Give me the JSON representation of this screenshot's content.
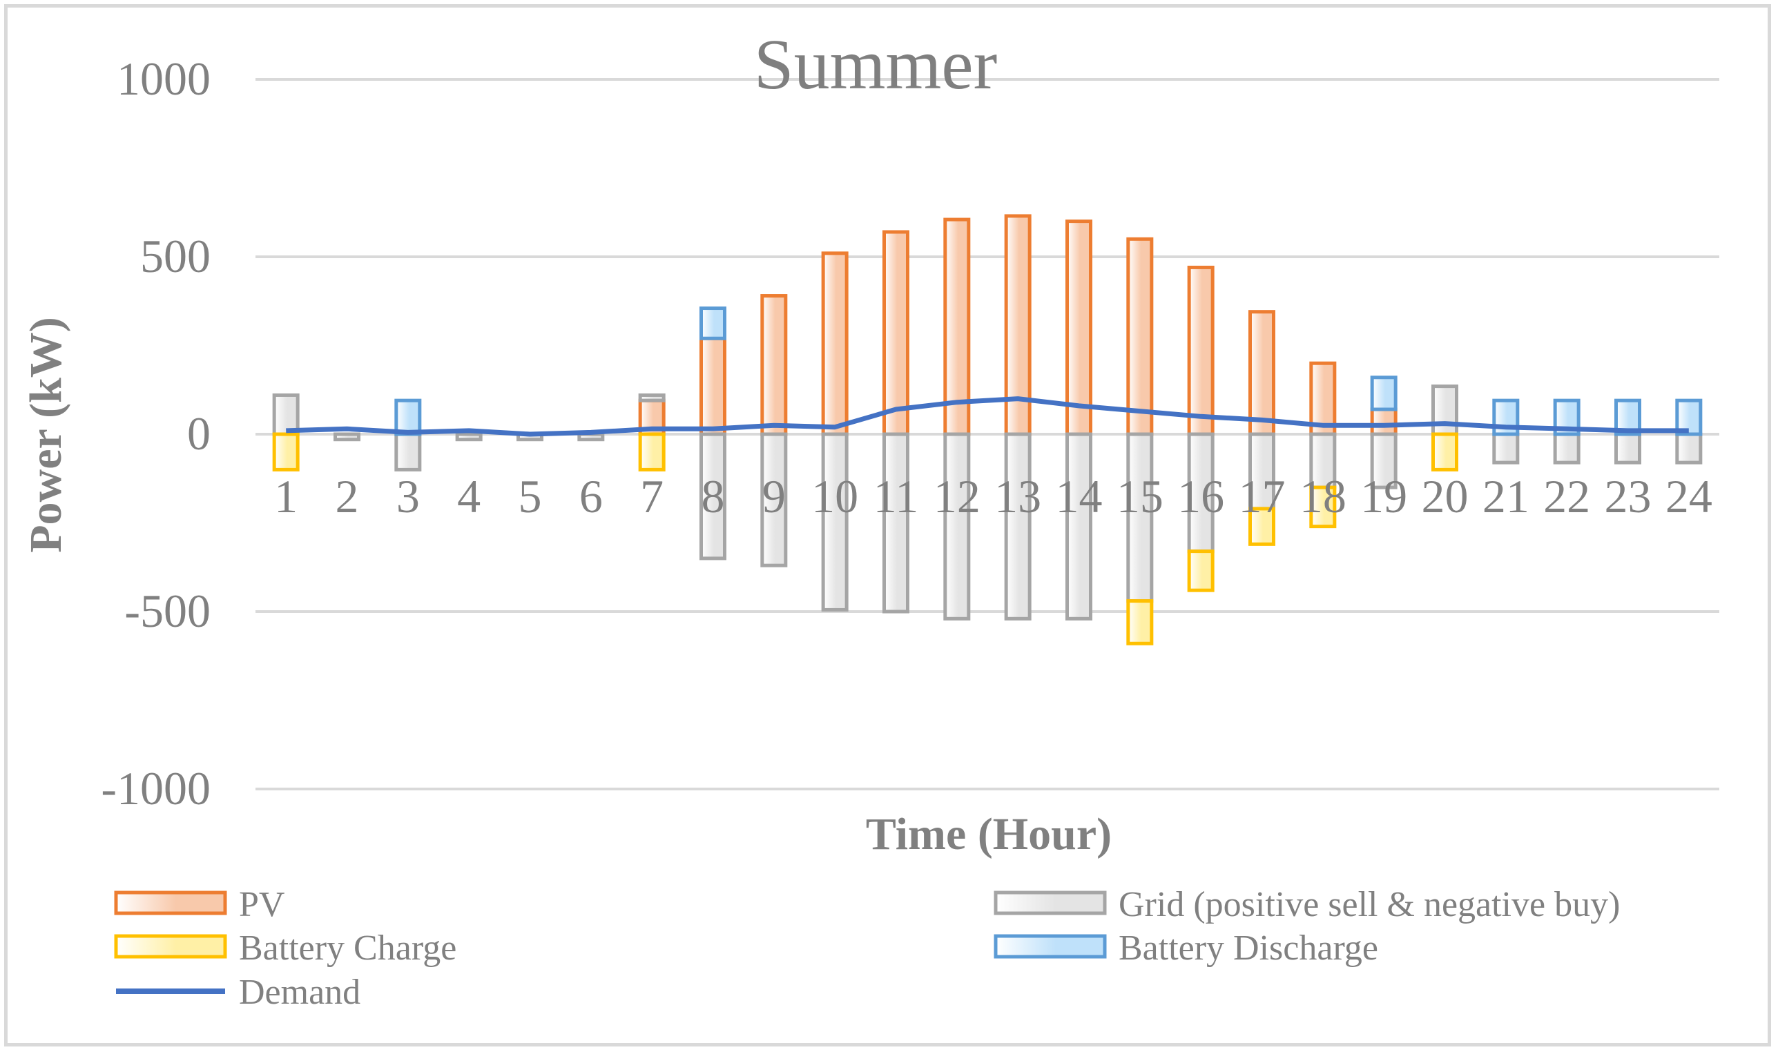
{
  "chart_data": {
    "type": "bar",
    "stacked": true,
    "title": "Summer",
    "xlabel": "Time (Hour)",
    "ylabel": "Power (kW)",
    "ylim": [
      -1000,
      1000
    ],
    "yticks": [
      "1000",
      "500",
      "0",
      "-500",
      "-1000"
    ],
    "ytick_values": [
      1000,
      500,
      0,
      -500,
      -1000
    ],
    "categories": [
      "1",
      "2",
      "3",
      "4",
      "5",
      "6",
      "7",
      "8",
      "9",
      "10",
      "11",
      "12",
      "13",
      "14",
      "15",
      "16",
      "17",
      "18",
      "19",
      "20",
      "21",
      "22",
      "23",
      "24"
    ],
    "series": [
      {
        "name": "PV",
        "kind": "bar",
        "fill": "#f8c9ab",
        "stroke": "#ed7d31",
        "values": [
          0,
          0,
          0,
          0,
          0,
          0,
          95,
          270,
          390,
          510,
          570,
          605,
          615,
          600,
          550,
          470,
          345,
          200,
          70,
          0,
          0,
          0,
          0,
          0
        ]
      },
      {
        "name": "Grid (positive sell & negative buy)",
        "kind": "bar",
        "fill": "#e4e4e4",
        "stroke": "#a5a5a5",
        "values": [
          110,
          -15,
          -100,
          -15,
          -15,
          -15,
          15,
          -350,
          -370,
          -495,
          -500,
          -520,
          -520,
          -520,
          -470,
          -330,
          -210,
          -150,
          -150,
          135,
          -80,
          -80,
          -80,
          -80
        ]
      },
      {
        "name": "Battery Charge",
        "kind": "bar",
        "fill": "#fff0a6",
        "stroke": "#ffc000",
        "values": [
          -100,
          0,
          0,
          0,
          0,
          0,
          -100,
          0,
          0,
          0,
          0,
          0,
          0,
          0,
          -120,
          -110,
          -100,
          -110,
          0,
          -100,
          0,
          0,
          0,
          0
        ]
      },
      {
        "name": "Battery Discharge",
        "kind": "bar",
        "fill": "#bfe1fa",
        "stroke": "#5b9bd5",
        "values": [
          0,
          0,
          95,
          0,
          0,
          0,
          0,
          85,
          0,
          0,
          0,
          0,
          0,
          0,
          0,
          0,
          0,
          0,
          90,
          0,
          95,
          95,
          95,
          95
        ]
      },
      {
        "name": "Demand",
        "kind": "line",
        "stroke": "#4472c4",
        "values": [
          10,
          15,
          5,
          10,
          0,
          5,
          15,
          15,
          25,
          20,
          70,
          90,
          100,
          80,
          65,
          50,
          40,
          25,
          25,
          30,
          20,
          15,
          10,
          10
        ]
      }
    ],
    "legend_position": "bottom",
    "grid": true
  }
}
